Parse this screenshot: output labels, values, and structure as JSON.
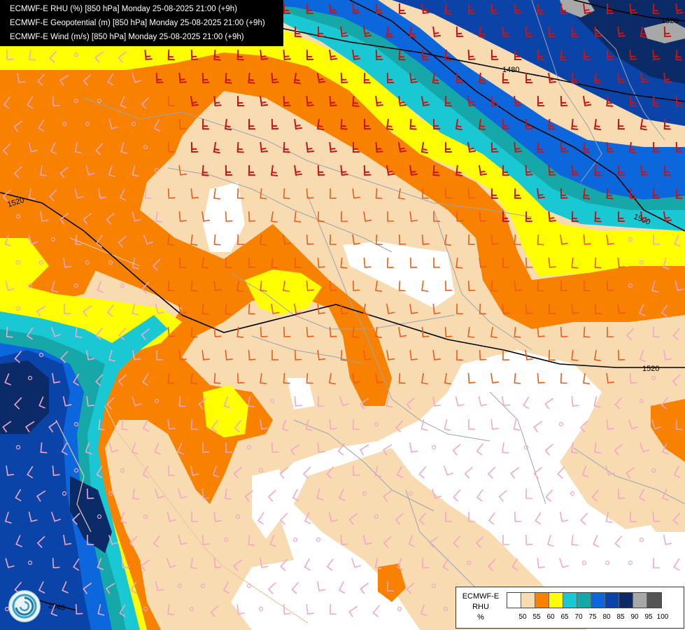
{
  "title_lines": [
    "ECMWF-E RHU (%) [850 hPa] Monday 25-08-2025 21:00 (+9h)",
    "ECMWF-E Geopotential (m) [850 hPa] Monday 25-08-2025 21:00 (+9h)",
    "ECMWF-E Wind (m/s) [850 hPa] Monday 25-08-2025 21:00 (+9h)"
  ],
  "legend": {
    "title_lines": [
      "ECMWF-E",
      "RHU",
      "%"
    ],
    "tick_labels": [
      "50",
      "55",
      "60",
      "65",
      "70",
      "75",
      "80",
      "85",
      "90",
      "95",
      "100"
    ],
    "colors": [
      "#ffffff",
      "#f8dbb0",
      "#f88200",
      "#ffff00",
      "#19c8d2",
      "#16a8a8",
      "#0c66dc",
      "#0a44a8",
      "#0a2a68",
      "#a8a8a8",
      "#555555"
    ]
  },
  "contour_labels": [
    "1520",
    "1500",
    "1520",
    "1480",
    "1520",
    "1540"
  ],
  "colors": {
    "rhu_50": "#ffffff",
    "rhu_55": "#f8dbb0",
    "rhu_60": "#f88200",
    "rhu_65": "#ffff00",
    "rhu_70": "#19c8d2",
    "rhu_75": "#16a8a8",
    "rhu_80": "#0c66dc",
    "rhu_85": "#0a44a8",
    "rhu_90": "#0a2a68",
    "rhu_95": "#a8a8a8",
    "wind_light": "#f5a6c8",
    "wind_mid": "#ee5a18",
    "wind_strong": "#c81414",
    "border": "#9aa4b4",
    "coast": "#e8c8a8",
    "contour": "#000000"
  },
  "icons": {
    "logo": "swirl-logo-icon"
  }
}
